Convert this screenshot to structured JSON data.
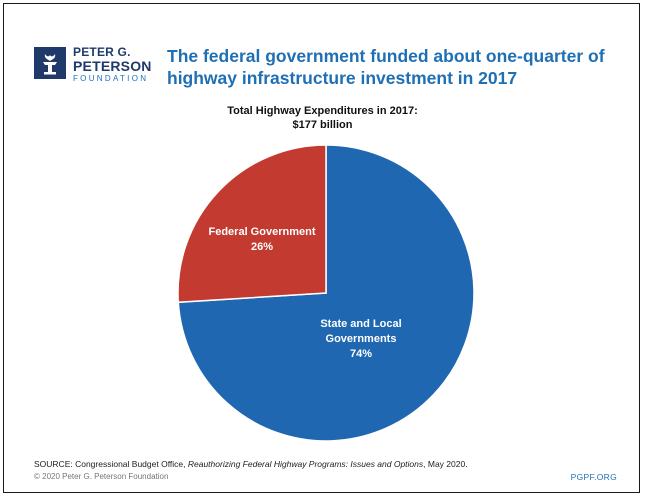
{
  "brand": {
    "line1": "PETER G.",
    "line2": "PETERSON",
    "line3": "FOUNDATION",
    "logo_icon": "torch-icon",
    "colors": {
      "navy": "#1f3a6a",
      "blue": "#1f6fb5"
    }
  },
  "headline": "The federal government funded about one-quarter of highway infrastructure investment in 2017",
  "chart_data": {
    "type": "pie",
    "title": "Total Highway Expenditures in 2017:",
    "subtitle": "$177 billion",
    "slices": [
      {
        "label": "State and Local Governments",
        "label_lines": [
          "State and Local",
          "Governments"
        ],
        "value": 74,
        "value_label": "74%",
        "color": "#1f67b1"
      },
      {
        "label": "Federal Government",
        "label_lines": [
          "Federal Government"
        ],
        "value": 26,
        "value_label": "26%",
        "color": "#c33a30"
      }
    ],
    "start_angle": "12 o'clock, clockwise",
    "legend": "none"
  },
  "footer": {
    "source_prefix": "SOURCE: Congressional Budget Office, ",
    "source_title": "Reauthorizing Federal Highway Programs: Issues and Options",
    "source_suffix": ", May 2020.",
    "copyright": "© 2020 Peter G. Peterson Foundation",
    "url": "PGPF.ORG"
  }
}
